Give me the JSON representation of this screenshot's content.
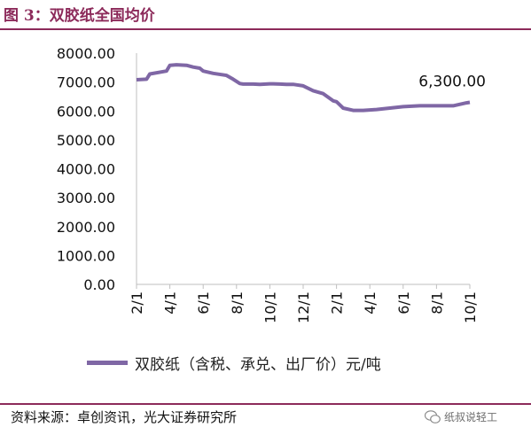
{
  "figure": {
    "title": "图 3：双胶纸全国均价",
    "source": "资料来源：卓创资讯，光大证券研究所",
    "watermark": "纸叔说轻工"
  },
  "colors": {
    "title": "#8c2a5a",
    "series": "#7f67a5",
    "axis": "#bfbfbf"
  },
  "chart_data": {
    "type": "line",
    "title": "",
    "xlabel": "",
    "ylabel": "",
    "ylim": [
      0,
      8000
    ],
    "yticks": [
      "0.00",
      "1000.00",
      "2000.00",
      "3000.00",
      "4000.00",
      "5000.00",
      "6000.00",
      "7000.00",
      "8000.00"
    ],
    "xticks": [
      "2/1",
      "4/1",
      "6/1",
      "8/1",
      "10/1",
      "12/1",
      "2/1",
      "4/1",
      "6/1",
      "8/1",
      "10/1"
    ],
    "grid": false,
    "legend": "bottom",
    "annotation": "6,300.00",
    "series": [
      {
        "name": "双胶纸（含税、承兑、出厂价）元/吨",
        "x": [
          0.0,
          0.3,
          0.4,
          0.9,
          1.0,
          1.2,
          1.5,
          1.7,
          1.9,
          2.0,
          2.3,
          2.7,
          2.9,
          3.1,
          3.2,
          3.5,
          3.7,
          4.0,
          4.1,
          4.3,
          4.5,
          4.7,
          5.0,
          5.3,
          5.6,
          5.9,
          6.0,
          6.2,
          6.5,
          6.8,
          7.2,
          7.6,
          8.0,
          8.5,
          9.0,
          9.5,
          9.9,
          10.0
        ],
        "values": [
          7080,
          7100,
          7280,
          7380,
          7580,
          7600,
          7580,
          7520,
          7480,
          7380,
          7300,
          7230,
          7100,
          6950,
          6930,
          6930,
          6920,
          6940,
          6940,
          6930,
          6920,
          6920,
          6870,
          6700,
          6600,
          6350,
          6320,
          6100,
          6020,
          6020,
          6050,
          6100,
          6150,
          6180,
          6180,
          6180,
          6280,
          6300
        ]
      }
    ]
  }
}
